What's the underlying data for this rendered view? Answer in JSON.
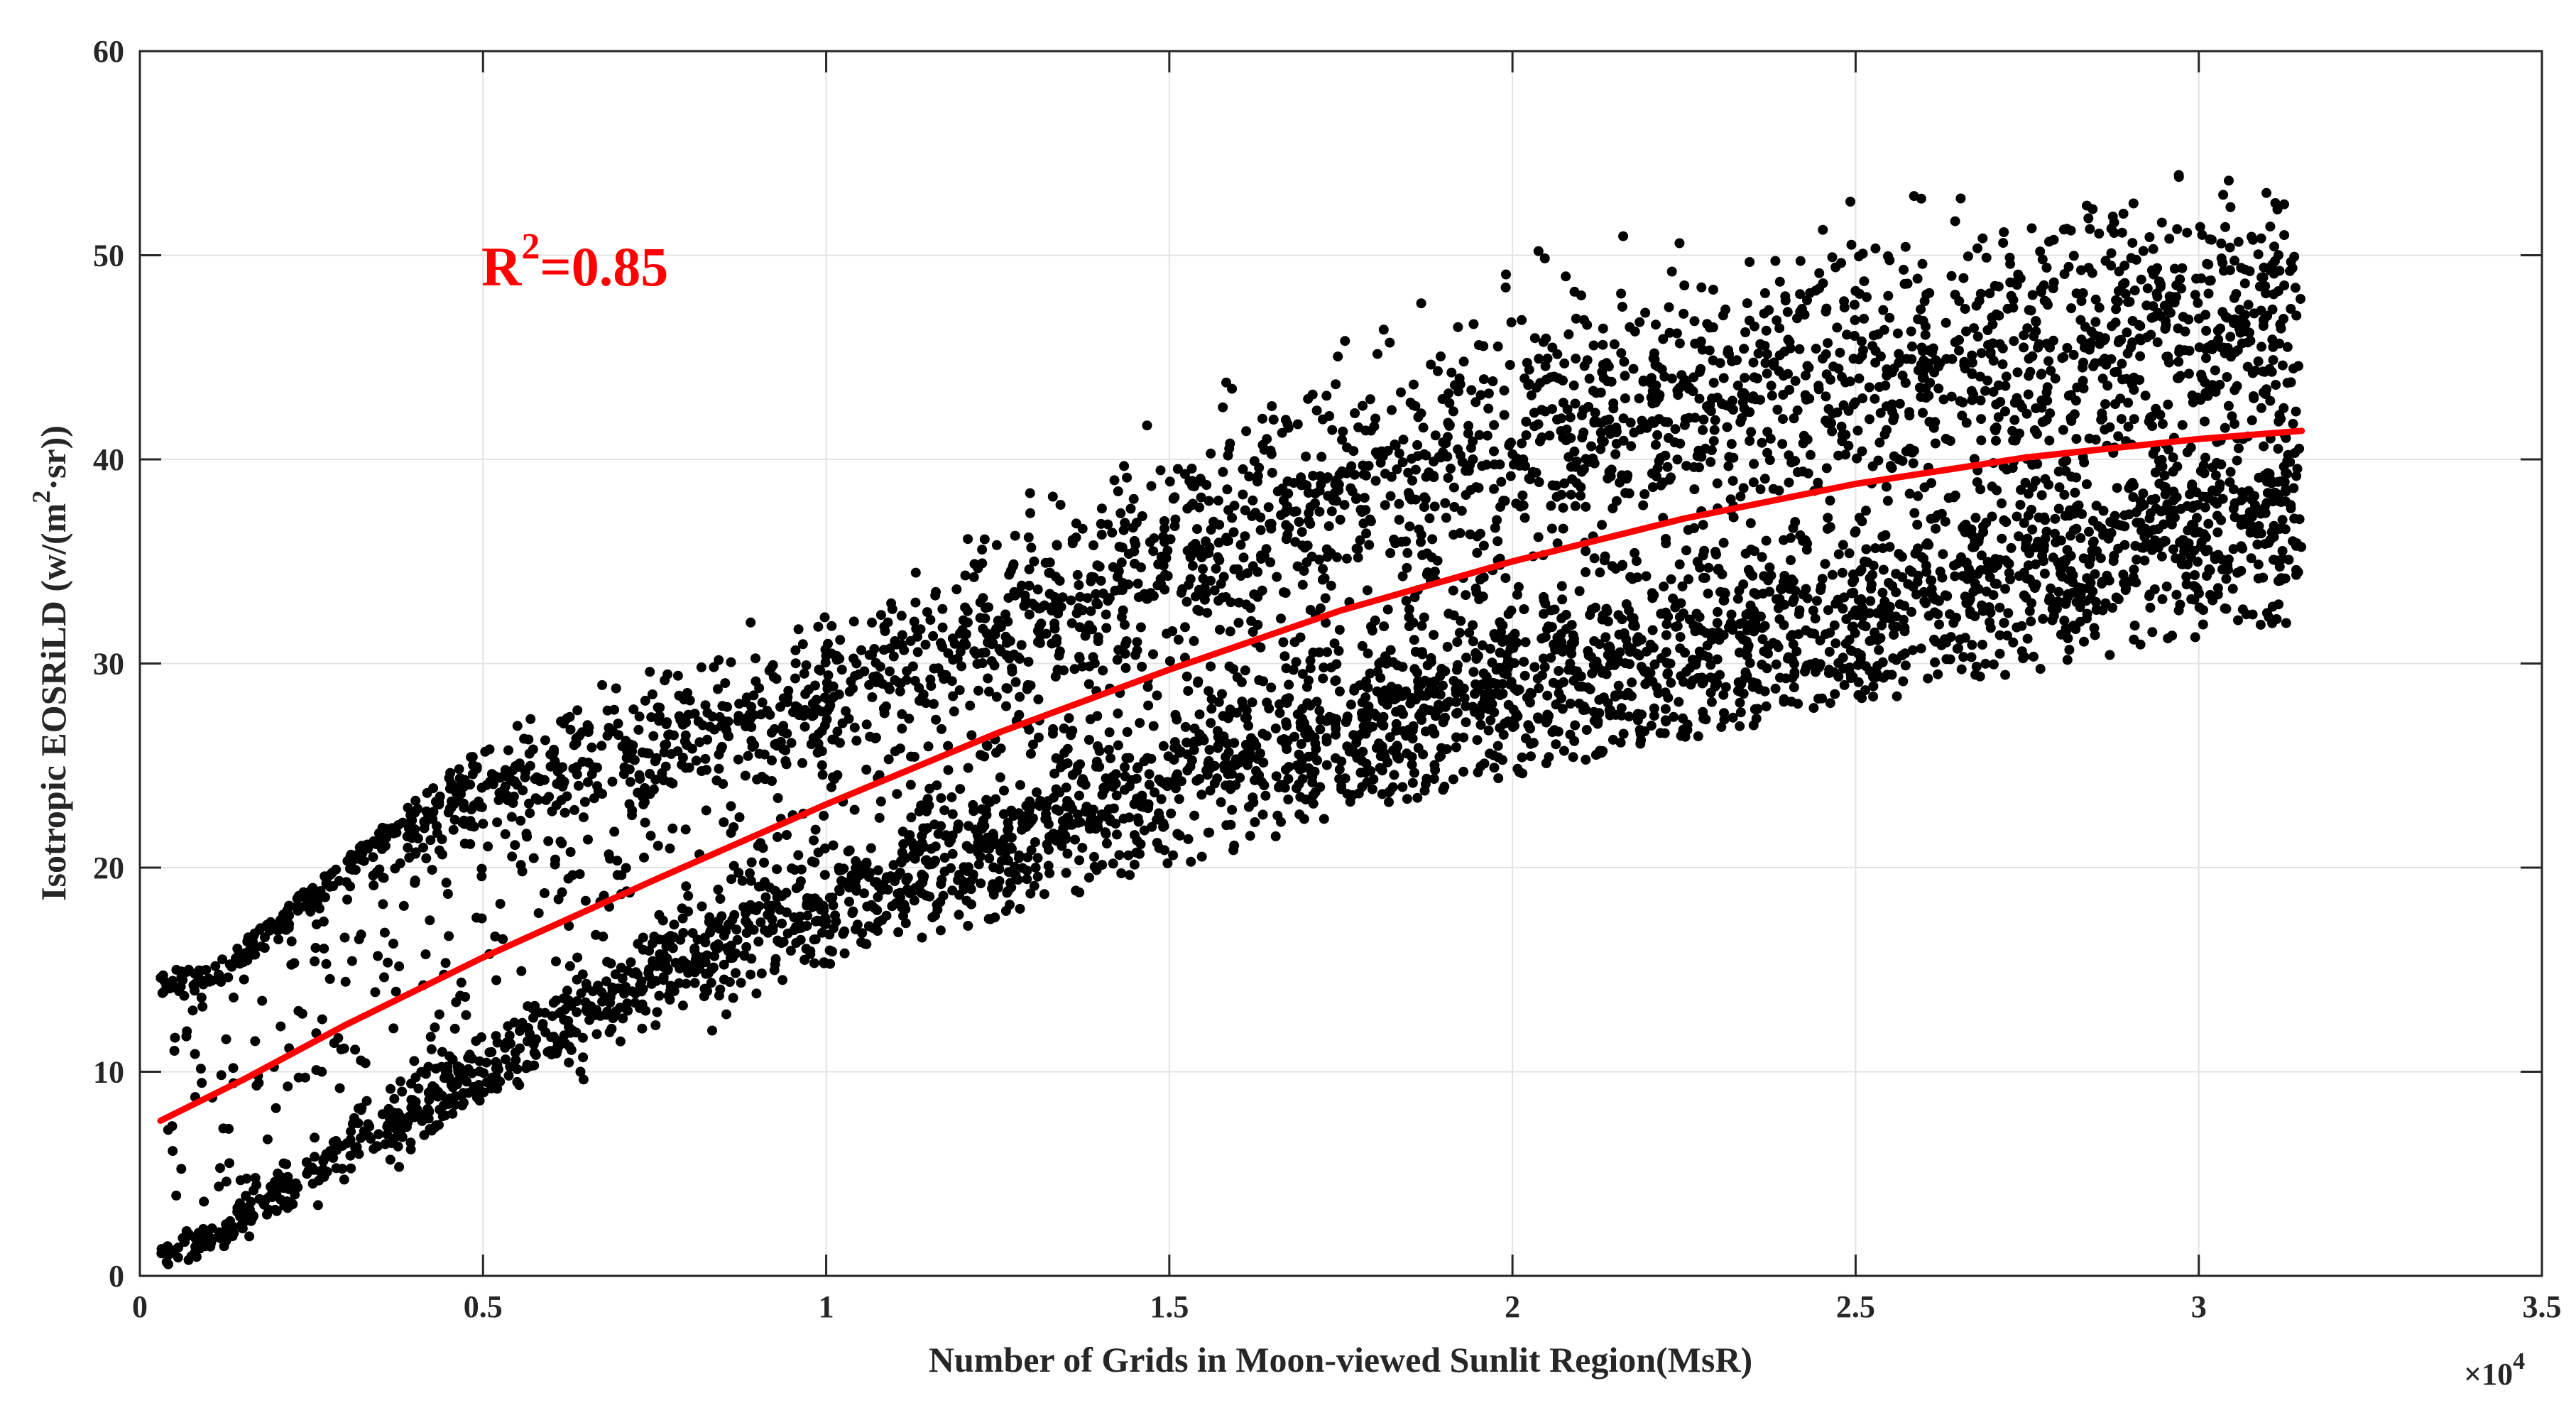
{
  "chart_data": {
    "type": "scatter",
    "xlabel": "Number of Grids in Moon-viewed Sunlit Region(MsR)",
    "ylabel_main": "Isotropic EOSRiLD (w/(m",
    "ylabel_sup": "2",
    "ylabel_tail": "·sr))",
    "x_multiplier": "×10",
    "x_multiplier_exp": "4",
    "xlim": [
      0,
      35000
    ],
    "ylim": [
      0,
      60
    ],
    "xticks": [
      0,
      5000,
      10000,
      15000,
      20000,
      25000,
      30000,
      35000
    ],
    "xtick_labels": [
      "0",
      "0.5",
      "1",
      "1.5",
      "2",
      "2.5",
      "3",
      "3.5"
    ],
    "yticks": [
      0,
      10,
      20,
      30,
      40,
      50,
      60
    ],
    "ytick_labels": [
      "0",
      "10",
      "20",
      "30",
      "40",
      "50",
      "60"
    ],
    "grid": true,
    "annotation": {
      "text": "R",
      "sup": "2",
      "tail": "=0.85",
      "color": "#ff0000"
    },
    "series": [
      {
        "kind": "scatter",
        "color": "#000000",
        "point_count": 6000,
        "x_range": [
          300,
          31500
        ],
        "lower_band_trend": [
          [
            500,
            1
          ],
          [
            2500,
            5
          ],
          [
            5000,
            10
          ],
          [
            7500,
            14.5
          ],
          [
            10000,
            18
          ],
          [
            12500,
            21
          ],
          [
            15000,
            24
          ],
          [
            17500,
            26.5
          ],
          [
            20000,
            28.5
          ],
          [
            22500,
            30
          ],
          [
            25000,
            32
          ],
          [
            27500,
            34
          ],
          [
            30000,
            36
          ],
          [
            31500,
            37
          ]
        ],
        "upper_band_trend": [
          [
            1000,
            15
          ],
          [
            2500,
            20
          ],
          [
            5000,
            24
          ],
          [
            7500,
            26
          ],
          [
            10000,
            28.5
          ],
          [
            12500,
            32
          ],
          [
            15000,
            36
          ],
          [
            17500,
            39
          ],
          [
            20000,
            41.5
          ],
          [
            22500,
            43.5
          ],
          [
            25000,
            45
          ],
          [
            27500,
            46
          ],
          [
            30000,
            47
          ],
          [
            31500,
            48
          ]
        ],
        "upper_edge": [
          [
            1000,
            15
          ],
          [
            5000,
            26
          ],
          [
            10000,
            36
          ],
          [
            15000,
            44
          ],
          [
            20000,
            50
          ],
          [
            25000,
            53
          ],
          [
            30000,
            54
          ],
          [
            31500,
            53
          ]
        ],
        "lower_edge": [
          [
            500,
            0.5
          ],
          [
            5000,
            6
          ],
          [
            10000,
            15
          ],
          [
            15000,
            20
          ],
          [
            20000,
            24.5
          ],
          [
            25000,
            28
          ],
          [
            30000,
            31
          ],
          [
            31500,
            32
          ]
        ]
      },
      {
        "kind": "fit-line",
        "color": "#ff0000",
        "points": [
          [
            300,
            7.6
          ],
          [
            1500,
            9.6
          ],
          [
            3000,
            12.3
          ],
          [
            5000,
            15.6
          ],
          [
            7500,
            19.4
          ],
          [
            10000,
            23.1
          ],
          [
            12500,
            26.6
          ],
          [
            15000,
            29.7
          ],
          [
            17500,
            32.6
          ],
          [
            20000,
            35.0
          ],
          [
            22500,
            37.1
          ],
          [
            25000,
            38.8
          ],
          [
            27500,
            40.1
          ],
          [
            30000,
            41.0
          ],
          [
            31500,
            41.4
          ]
        ]
      }
    ]
  }
}
